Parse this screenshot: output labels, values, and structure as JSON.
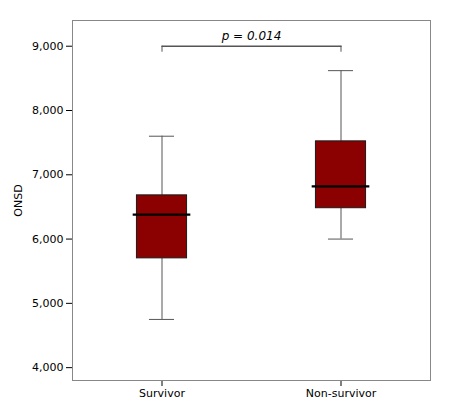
{
  "chart_data": {
    "type": "box",
    "categories": [
      "Survivor",
      "Non-survivor"
    ],
    "values": [
      {
        "whisker_low": 4750,
        "q1": 5700,
        "median": 6380,
        "q3": 6680,
        "whisker_high": 7600
      },
      {
        "whisker_low": 6000,
        "q1": 6480,
        "median": 6820,
        "q3": 7520,
        "whisker_high": 8620
      }
    ],
    "color": "#8B0000",
    "ylabel": "ONSD",
    "ylim": [
      3800,
      9400
    ],
    "yticks": [
      {
        "value": 4000,
        "label": "4,000"
      },
      {
        "value": 5000,
        "label": "5,000"
      },
      {
        "value": 6000,
        "label": "6,000"
      },
      {
        "value": 7000,
        "label": "7,000"
      },
      {
        "value": 8000,
        "label": "8,000"
      },
      {
        "value": 9000,
        "label": "9,000"
      }
    ],
    "grid": false,
    "annotations": [
      {
        "text": "p = 0.014",
        "from": "Survivor",
        "to": "Non-survivor",
        "y": 9000
      }
    ]
  }
}
